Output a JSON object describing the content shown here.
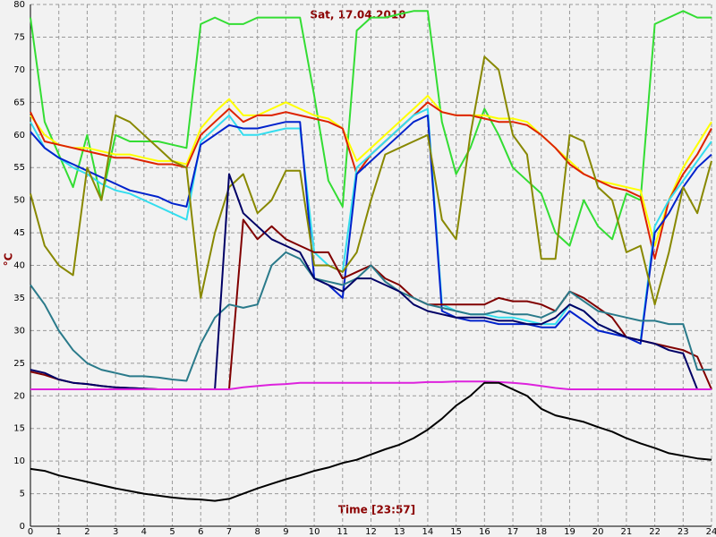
{
  "chart_data": {
    "type": "line",
    "title": "Sat, 17.04.2010",
    "xlabel": "Time [23:57]",
    "ylabel": "°C",
    "x": [
      0,
      0.5,
      1,
      1.5,
      2,
      2.5,
      3,
      3.5,
      4,
      4.5,
      5,
      5.5,
      6,
      6.5,
      7,
      7.5,
      8,
      8.5,
      9,
      9.5,
      10,
      10.5,
      11,
      11.5,
      12,
      12.5,
      13,
      13.5,
      14,
      14.5,
      15,
      15.5,
      16,
      16.5,
      17,
      17.5,
      18,
      18.5,
      19,
      19.5,
      20,
      20.5,
      21,
      21.5,
      22,
      22.5,
      23,
      23.5,
      24
    ],
    "xlim": [
      0,
      24
    ],
    "xticks": [
      0,
      1,
      2,
      3,
      4,
      5,
      6,
      7,
      8,
      9,
      10,
      11,
      12,
      13,
      14,
      15,
      16,
      17,
      18,
      19,
      20,
      21,
      22,
      23,
      24
    ],
    "ylim": [
      0,
      80
    ],
    "yticks": [
      0,
      5,
      10,
      15,
      20,
      25,
      30,
      35,
      40,
      45,
      50,
      55,
      60,
      65,
      70,
      75,
      80
    ],
    "grid": true,
    "series": [
      {
        "color": "#33dd33",
        "values": [
          78,
          62,
          57,
          52,
          60,
          50,
          60,
          59,
          59,
          59,
          58.5,
          58,
          77,
          78,
          77,
          77,
          78,
          78,
          78,
          78,
          66,
          53,
          49,
          76,
          78,
          78,
          78.5,
          79,
          79,
          62,
          54,
          58,
          64,
          60,
          55,
          53,
          51,
          45,
          43,
          50,
          46,
          44,
          51,
          50,
          77,
          78,
          79,
          78,
          78
        ]
      },
      {
        "color": "#ffff00",
        "values": [
          63,
          60,
          58.5,
          58,
          58,
          57.5,
          57,
          57,
          56.5,
          56,
          56,
          55.5,
          61,
          63.5,
          65.5,
          63,
          63,
          64,
          65,
          64,
          63,
          62.5,
          61,
          56,
          58,
          60,
          62,
          64,
          66,
          63.5,
          63,
          63,
          63,
          62.5,
          62.5,
          62,
          60,
          58,
          56,
          54,
          53,
          52.5,
          52,
          51.5,
          43,
          50,
          55,
          58.5,
          62
        ]
      },
      {
        "color": "#dd2200",
        "values": [
          63.5,
          59,
          58.5,
          58,
          57.5,
          57,
          56.5,
          56.5,
          56,
          55.5,
          55.5,
          55,
          60,
          62,
          64,
          62,
          63,
          63,
          63.5,
          63,
          62.5,
          62,
          61,
          54,
          57,
          59,
          61,
          63,
          65,
          63.5,
          63,
          63,
          62.5,
          62,
          62,
          61.5,
          60,
          58,
          55.5,
          54,
          53,
          52,
          51.5,
          50.5,
          41,
          50,
          54,
          57,
          61
        ]
      },
      {
        "color": "#33ddee",
        "values": [
          62,
          58,
          56.5,
          55,
          54,
          52.5,
          51.5,
          51,
          50,
          49,
          48,
          47,
          59,
          61,
          63,
          60,
          60,
          60.5,
          61,
          61,
          42,
          40,
          39,
          55,
          57,
          59,
          61,
          63,
          64,
          34,
          33,
          32.5,
          32.5,
          32,
          32,
          31.5,
          31,
          31,
          34,
          33,
          31,
          30,
          29,
          28.5,
          46,
          50,
          53,
          56,
          59
        ]
      },
      {
        "color": "#0022cc",
        "values": [
          60.5,
          58,
          56.5,
          55.5,
          54.5,
          53.5,
          52.5,
          51.5,
          51,
          50.5,
          49.5,
          49,
          58.5,
          60,
          61.5,
          61,
          61,
          61.5,
          62,
          62,
          38,
          37,
          35,
          54,
          56,
          58,
          60,
          62,
          63,
          33,
          32,
          31.5,
          31.5,
          31,
          31,
          31,
          30.5,
          30.5,
          33,
          31.5,
          30,
          29.5,
          29,
          28,
          45,
          48,
          52,
          55,
          57
        ]
      },
      {
        "color": "#888800",
        "values": [
          51,
          43,
          40,
          38.5,
          55,
          50,
          63,
          62,
          60,
          58,
          56,
          55,
          35,
          45,
          52,
          54,
          48,
          50,
          54.5,
          54.5,
          40,
          40,
          39,
          42,
          50,
          57,
          58,
          59,
          60,
          47,
          44,
          60,
          72,
          70,
          60,
          57,
          41,
          41,
          60,
          59,
          52,
          50,
          42,
          43,
          34,
          42,
          52,
          48,
          56
        ]
      },
      {
        "color": "#800000",
        "values": [
          23.7,
          23.2,
          22.5,
          22,
          21.8,
          21.5,
          21.3,
          21.2,
          21.1,
          21,
          21,
          21,
          21,
          21,
          21,
          47,
          44,
          46,
          44,
          43,
          42,
          42,
          38,
          39,
          40,
          38,
          37,
          35,
          34,
          34,
          34,
          34,
          34,
          35,
          34.5,
          34.5,
          34,
          33,
          36,
          35,
          33.5,
          32,
          29,
          28.5,
          28,
          27.5,
          27,
          26,
          21
        ]
      },
      {
        "color": "#2a7a8a",
        "values": [
          37,
          34,
          30,
          27,
          25,
          24,
          23.5,
          23,
          23,
          22.8,
          22.5,
          22.3,
          28,
          32,
          34,
          33.5,
          34,
          40,
          42,
          41,
          38,
          37.5,
          37,
          38,
          40,
          37.5,
          36,
          35,
          34,
          33.5,
          33,
          32.5,
          32.5,
          33,
          32.5,
          32.5,
          32,
          33,
          36,
          34.5,
          33,
          32.5,
          32,
          31.5,
          31.5,
          31,
          31,
          24,
          24
        ]
      },
      {
        "color": "#000066",
        "values": [
          24,
          23.5,
          22.5,
          22,
          21.8,
          21.5,
          21.3,
          21.2,
          21.1,
          21,
          21,
          21,
          21,
          21,
          54,
          48,
          46,
          44,
          43,
          42,
          38,
          37,
          36,
          38,
          38,
          37,
          36,
          34,
          33,
          32.5,
          32,
          32,
          32,
          31.5,
          31.5,
          31,
          31,
          32,
          34,
          33,
          31,
          30,
          29,
          28.5,
          28,
          27,
          26.5,
          21,
          21
        ]
      },
      {
        "color": "#dd22dd",
        "values": [
          21,
          21,
          21,
          21,
          21,
          21,
          21,
          21,
          21,
          21,
          21,
          21,
          21,
          21,
          21,
          21.3,
          21.5,
          21.7,
          21.8,
          22,
          22,
          22,
          22,
          22,
          22,
          22,
          22,
          22,
          22.1,
          22.1,
          22.2,
          22.2,
          22.2,
          22.1,
          22,
          21.8,
          21.5,
          21.2,
          21,
          21,
          21,
          21,
          21,
          21,
          21,
          21,
          21,
          21,
          21
        ]
      },
      {
        "color": "#000000",
        "values": [
          8.8,
          8.5,
          7.8,
          7.3,
          6.8,
          6.3,
          5.8,
          5.4,
          5,
          4.7,
          4.4,
          4.2,
          4.1,
          3.9,
          4.2,
          5,
          5.8,
          6.5,
          7.2,
          7.8,
          8.5,
          9,
          9.7,
          10.2,
          11,
          11.8,
          12.5,
          13.5,
          14.8,
          16.5,
          18.5,
          20,
          22,
          22,
          21,
          20,
          18,
          17,
          16.5,
          16,
          15.2,
          14.5,
          13.5,
          12.7,
          12,
          11.2,
          10.8,
          10.4,
          10.2
        ]
      }
    ]
  }
}
